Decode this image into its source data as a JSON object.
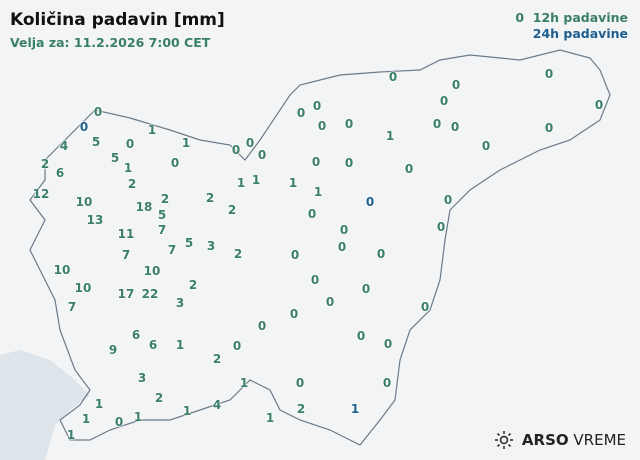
{
  "header": {
    "title": "Količina padavin [mm]",
    "valid": "Velja za: 11.2.2026 7:00 CET"
  },
  "legend": {
    "h12": "12h padavine",
    "h24": "24h padavine",
    "h12_sample": "0"
  },
  "colors": {
    "h12": "#3a7f68",
    "h24": "#1f5f8f",
    "border": "#6b7a89",
    "sea": "#dde4ea",
    "land": "#f3f4f5"
  },
  "logo": {
    "icon": "sun-icon",
    "brand": "ARSO",
    "product": "VREME"
  },
  "stations": [
    {
      "v": "0",
      "t": "12h"
    },
    {
      "v": "0",
      "t": "24h"
    },
    {
      "v": "1",
      "t": "12h"
    },
    {
      "v": "1",
      "t": "12h"
    },
    {
      "v": "4",
      "t": "12h"
    },
    {
      "v": "5",
      "t": "12h"
    },
    {
      "v": "0",
      "t": "12h"
    },
    {
      "v": "5",
      "t": "12h"
    },
    {
      "v": "1",
      "t": "12h"
    },
    {
      "v": "0",
      "t": "12h"
    },
    {
      "v": "2",
      "t": "12h"
    },
    {
      "v": "6",
      "t": "12h"
    },
    {
      "v": "2",
      "t": "12h"
    },
    {
      "v": "1",
      "t": "12h"
    },
    {
      "v": "1",
      "t": "12h"
    },
    {
      "v": "0",
      "t": "12h"
    },
    {
      "v": "0",
      "t": "12h"
    },
    {
      "v": "0",
      "t": "12h"
    },
    {
      "v": "2",
      "t": "12h"
    },
    {
      "v": "2",
      "t": "12h"
    },
    {
      "v": "12",
      "t": "12h"
    },
    {
      "v": "10",
      "t": "12h"
    },
    {
      "v": "18",
      "t": "12h"
    },
    {
      "v": "2",
      "t": "12h"
    },
    {
      "v": "5",
      "t": "12h"
    },
    {
      "v": "7",
      "t": "12h"
    },
    {
      "v": "13",
      "t": "12h"
    },
    {
      "v": "11",
      "t": "12h"
    },
    {
      "v": "7",
      "t": "12h"
    },
    {
      "v": "5",
      "t": "12h"
    },
    {
      "v": "3",
      "t": "12h"
    },
    {
      "v": "2",
      "t": "12h"
    },
    {
      "v": "7",
      "t": "12h"
    },
    {
      "v": "10",
      "t": "12h"
    },
    {
      "v": "10",
      "t": "12h"
    },
    {
      "v": "10",
      "t": "12h"
    },
    {
      "v": "17",
      "t": "12h"
    },
    {
      "v": "22",
      "t": "12h"
    },
    {
      "v": "2",
      "t": "12h"
    },
    {
      "v": "3",
      "t": "12h"
    },
    {
      "v": "7",
      "t": "12h"
    },
    {
      "v": "6",
      "t": "12h"
    },
    {
      "v": "6",
      "t": "12h"
    },
    {
      "v": "1",
      "t": "12h"
    },
    {
      "v": "9",
      "t": "12h"
    },
    {
      "v": "2",
      "t": "12h"
    },
    {
      "v": "0",
      "t": "12h"
    },
    {
      "v": "0",
      "t": "12h"
    },
    {
      "v": "0",
      "t": "12h"
    },
    {
      "v": "3",
      "t": "12h"
    },
    {
      "v": "2",
      "t": "12h"
    },
    {
      "v": "1",
      "t": "12h"
    },
    {
      "v": "1",
      "t": "12h"
    },
    {
      "v": "0",
      "t": "12h"
    },
    {
      "v": "1",
      "t": "12h"
    },
    {
      "v": "1",
      "t": "12h"
    },
    {
      "v": "4",
      "t": "12h"
    },
    {
      "v": "1",
      "t": "12h"
    },
    {
      "v": "0",
      "t": "12h"
    },
    {
      "v": "2",
      "t": "12h"
    },
    {
      "v": "1",
      "t": "12h"
    },
    {
      "v": "1",
      "t": "12h"
    },
    {
      "v": "0",
      "t": "12h"
    },
    {
      "v": "0",
      "t": "12h"
    },
    {
      "v": "0",
      "t": "12h"
    },
    {
      "v": "0",
      "t": "12h"
    },
    {
      "v": "0",
      "t": "12h"
    },
    {
      "v": "0",
      "t": "12h"
    },
    {
      "v": "0",
      "t": "12h"
    },
    {
      "v": "0",
      "t": "12h"
    },
    {
      "v": "0",
      "t": "12h"
    },
    {
      "v": "1",
      "t": "12h"
    },
    {
      "v": "0",
      "t": "12h"
    },
    {
      "v": "0",
      "t": "12h"
    },
    {
      "v": "0",
      "t": "12h"
    },
    {
      "v": "0",
      "t": "12h"
    },
    {
      "v": "0",
      "t": "12h"
    },
    {
      "v": "0",
      "t": "12h"
    },
    {
      "v": "0",
      "t": "12h"
    },
    {
      "v": "1",
      "t": "12h"
    },
    {
      "v": "1",
      "t": "12h"
    },
    {
      "v": "0",
      "t": "12h"
    },
    {
      "v": "0",
      "t": "12h"
    },
    {
      "v": "0",
      "t": "12h"
    },
    {
      "v": "0",
      "t": "12h"
    },
    {
      "v": "0",
      "t": "12h"
    },
    {
      "v": "0",
      "t": "12h"
    },
    {
      "v": "0",
      "t": "12h"
    },
    {
      "v": "0",
      "t": "12h"
    },
    {
      "v": "0",
      "t": "12h"
    },
    {
      "v": "0",
      "t": "12h"
    },
    {
      "v": "0",
      "t": "12h"
    },
    {
      "v": "0",
      "t": "12h"
    },
    {
      "v": "0",
      "t": "12h"
    },
    {
      "v": "0",
      "t": "12h"
    },
    {
      "v": "1",
      "t": "24h"
    },
    {
      "v": "0",
      "t": "24h"
    }
  ]
}
